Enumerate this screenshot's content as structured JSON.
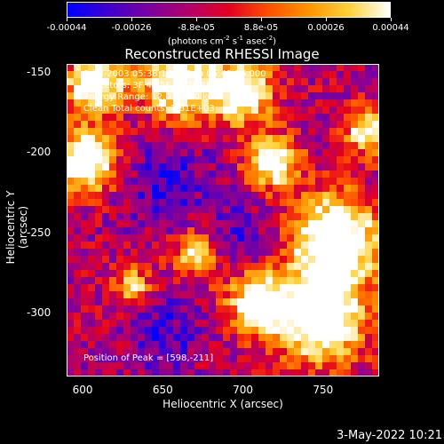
{
  "colorbar": {
    "ticks": [
      "-0.00044",
      "-0.00026",
      "-8.8e-05",
      "8.8e-05",
      "0.00026",
      "0.00044"
    ],
    "unit_base": "(photons cm",
    "unit_exp1": "-2",
    "unit_mid": " s",
    "unit_exp2": "-1",
    "unit_mid2": " asec",
    "unit_exp3": "-2",
    "unit_end": ")",
    "colors": [
      "#0000ff",
      "#3c00d0",
      "#7a00a0",
      "#b2006a",
      "#e30020",
      "#ff5000",
      "#ff9500",
      "#ffd23c",
      "#ffffff"
    ]
  },
  "chart_data": {
    "type": "heatmap",
    "title": "Reconstructed RHESSI Image",
    "xlabel": "Heliocentric X (arcsec)",
    "ylabel": "Heliocentric Y (arcsec)",
    "xlim": [
      590,
      785
    ],
    "ylim": [
      -340,
      -145
    ],
    "x_ticks": [
      "600",
      "650",
      "700",
      "750"
    ],
    "y_ticks": [
      "-150",
      "-200",
      "-250",
      "-300"
    ],
    "value_range": [
      -0.00044,
      0.00044
    ],
    "annotations": {
      "time": "8-Jul-2003 05:38:16.000 to 05:41:16.000",
      "detectors": "Detectors: 3F 4F 5F 6F 7F 8F, Att 0",
      "energy": "Energy Range: 12.0 - 25.0 keV",
      "clean": "Clean      Total counts: 1.81E+03",
      "peak": "Position of Peak = [598,-211]"
    }
  },
  "footer": {
    "date": "3-May-2022 10:21"
  }
}
